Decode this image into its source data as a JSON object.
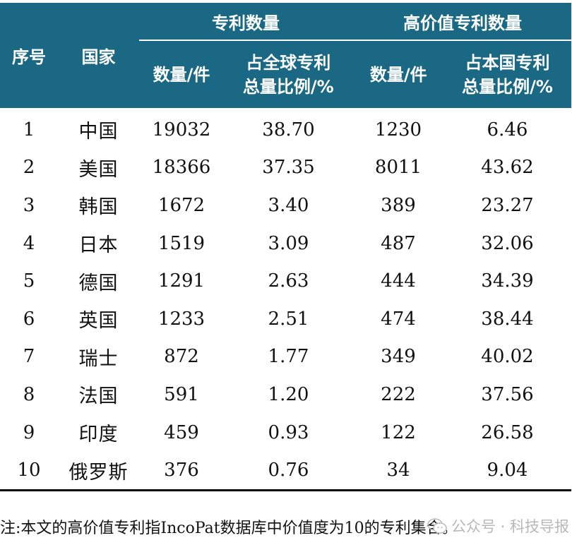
{
  "table": {
    "header": {
      "idx": "序号",
      "country": "国家",
      "group1": "专利数量",
      "group2": "高价值专利数量",
      "count": "数量/件",
      "share_line1": "占全球专利",
      "share_line2": "总量比例/%",
      "hv_count": "数量/件",
      "hv_share_line1": "占本国专利",
      "hv_share_line2": "总量比例/%"
    },
    "rows": [
      {
        "idx": "1",
        "country": "中国",
        "count": "19032",
        "share": "38.70",
        "hv_count": "1230",
        "hv_share": "6.46"
      },
      {
        "idx": "2",
        "country": "美国",
        "count": "18366",
        "share": "37.35",
        "hv_count": "8011",
        "hv_share": "43.62"
      },
      {
        "idx": "3",
        "country": "韩国",
        "count": "1672",
        "share": "3.40",
        "hv_count": "389",
        "hv_share": "23.27"
      },
      {
        "idx": "4",
        "country": "日本",
        "count": "1519",
        "share": "3.09",
        "hv_count": "487",
        "hv_share": "32.06"
      },
      {
        "idx": "5",
        "country": "德国",
        "count": "1291",
        "share": "2.63",
        "hv_count": "444",
        "hv_share": "34.39"
      },
      {
        "idx": "6",
        "country": "英国",
        "count": "1233",
        "share": "2.51",
        "hv_count": "474",
        "hv_share": "38.44"
      },
      {
        "idx": "7",
        "country": "瑞士",
        "count": "872",
        "share": "1.77",
        "hv_count": "349",
        "hv_share": "40.02"
      },
      {
        "idx": "8",
        "country": "法国",
        "count": "591",
        "share": "1.20",
        "hv_count": "222",
        "hv_share": "37.56"
      },
      {
        "idx": "9",
        "country": "印度",
        "count": "459",
        "share": "0.93",
        "hv_count": "122",
        "hv_share": "26.58"
      },
      {
        "idx": "10",
        "country": "俄罗斯",
        "count": "376",
        "share": "0.76",
        "hv_count": "34",
        "hv_share": "9.04"
      }
    ]
  },
  "note": "注:本文的高价值专利指IncoPat数据库中价值度为10的专利集合。",
  "watermark": {
    "label": "公众号 · 科技导报",
    "icon": "wechat-icon"
  },
  "colors": {
    "header_bg": "#1a6883",
    "header_text": "#ffffff"
  }
}
